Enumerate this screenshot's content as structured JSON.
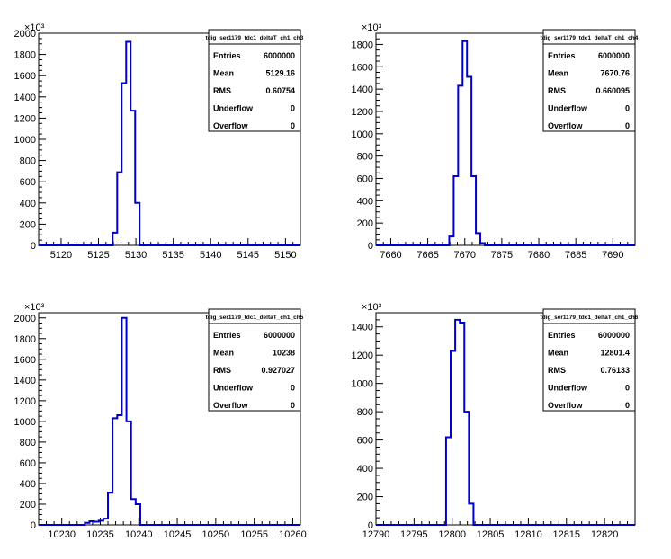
{
  "chart_data": [
    {
      "type": "histogram",
      "name": "tdig_ser1179_tdc1_deltaT_ch1_ch3",
      "xlim": [
        5117,
        5152
      ],
      "ylim": [
        0,
        2000
      ],
      "y_exponent_label": "×10³",
      "x_ticks": [
        5120,
        5125,
        5130,
        5135,
        5140,
        5145,
        5150
      ],
      "y_ticks": [
        0,
        200,
        400,
        600,
        800,
        1000,
        1200,
        1400,
        1600,
        1800,
        2000
      ],
      "bin_edges": [
        5126.9,
        5127.5,
        5128.1,
        5128.7,
        5129.3,
        5129.9,
        5130.5
      ],
      "values": [
        120,
        690,
        1530,
        1920,
        1270,
        400
      ],
      "stats": [
        {
          "label": "Entries",
          "value": "6000000"
        },
        {
          "label": "Mean",
          "value": "5129.16"
        },
        {
          "label": "RMS",
          "value": "0.60754"
        },
        {
          "label": "Underflow",
          "value": "0"
        },
        {
          "label": "Overflow",
          "value": "0"
        }
      ]
    },
    {
      "type": "histogram",
      "name": "tdig_ser1179_tdc1_deltaT_ch1_ch4",
      "xlim": [
        7658,
        7693
      ],
      "ylim": [
        0,
        1900
      ],
      "y_exponent_label": "×10³",
      "x_ticks": [
        7660,
        7665,
        7670,
        7675,
        7680,
        7685,
        7690
      ],
      "y_ticks": [
        0,
        200,
        400,
        600,
        800,
        1000,
        1200,
        1400,
        1600,
        1800
      ],
      "bin_edges": [
        7667.9,
        7668.5,
        7669.1,
        7669.7,
        7670.3,
        7670.9,
        7671.5,
        7672.1,
        7672.7
      ],
      "values": [
        80,
        620,
        1430,
        1830,
        1510,
        620,
        110,
        20
      ],
      "stats": [
        {
          "label": "Entries",
          "value": "6000000"
        },
        {
          "label": "Mean",
          "value": "7670.76"
        },
        {
          "label": "RMS",
          "value": "0.660095"
        },
        {
          "label": "Underflow",
          "value": "0"
        },
        {
          "label": "Overflow",
          "value": "0"
        }
      ]
    },
    {
      "type": "histogram",
      "name": "tdig_ser1179_tdc1_deltaT_ch1_ch5",
      "xlim": [
        10227,
        10261
      ],
      "ylim": [
        0,
        2050
      ],
      "y_exponent_label": "×10³",
      "x_ticks": [
        10230,
        10235,
        10240,
        10245,
        10250,
        10255,
        10260
      ],
      "y_ticks": [
        0,
        200,
        400,
        600,
        800,
        1000,
        1200,
        1400,
        1600,
        1800,
        2000
      ],
      "bin_edges": [
        10233.0,
        10233.6,
        10234.2,
        10234.8,
        10235.4,
        10236.0,
        10236.6,
        10237.2,
        10237.8,
        10238.4,
        10239.0,
        10239.6,
        10240.2
      ],
      "values": [
        20,
        35,
        30,
        40,
        60,
        310,
        1030,
        1060,
        2000,
        1000,
        250,
        200
      ],
      "stats": [
        {
          "label": "Entries",
          "value": "6000000"
        },
        {
          "label": "Mean",
          "value": "10238"
        },
        {
          "label": "RMS",
          "value": "0.927027"
        },
        {
          "label": "Underflow",
          "value": "0"
        },
        {
          "label": "Overflow",
          "value": "0"
        }
      ]
    },
    {
      "type": "histogram",
      "name": "tdig_ser1179_tdc1_deltaT_ch1_ch6",
      "xlim": [
        12790,
        12824
      ],
      "ylim": [
        0,
        1500
      ],
      "y_exponent_label": "×10³",
      "x_ticks": [
        12790,
        12795,
        12800,
        12805,
        12810,
        12815,
        12820
      ],
      "y_ticks": [
        0,
        200,
        400,
        600,
        800,
        1000,
        1200,
        1400
      ],
      "bin_edges": [
        12799.2,
        12799.8,
        12800.4,
        12801.0,
        12801.6,
        12802.2,
        12802.8
      ],
      "values": [
        620,
        1230,
        1450,
        1430,
        800,
        150
      ],
      "stats": [
        {
          "label": "Entries",
          "value": "6000000"
        },
        {
          "label": "Mean",
          "value": "12801.4"
        },
        {
          "label": "RMS",
          "value": "0.76133"
        },
        {
          "label": "Underflow",
          "value": "0"
        },
        {
          "label": "Overflow",
          "value": "0"
        }
      ]
    }
  ],
  "colors": {
    "histogram_line": "#0000cc",
    "axis": "#000000",
    "background": "#ffffff"
  }
}
